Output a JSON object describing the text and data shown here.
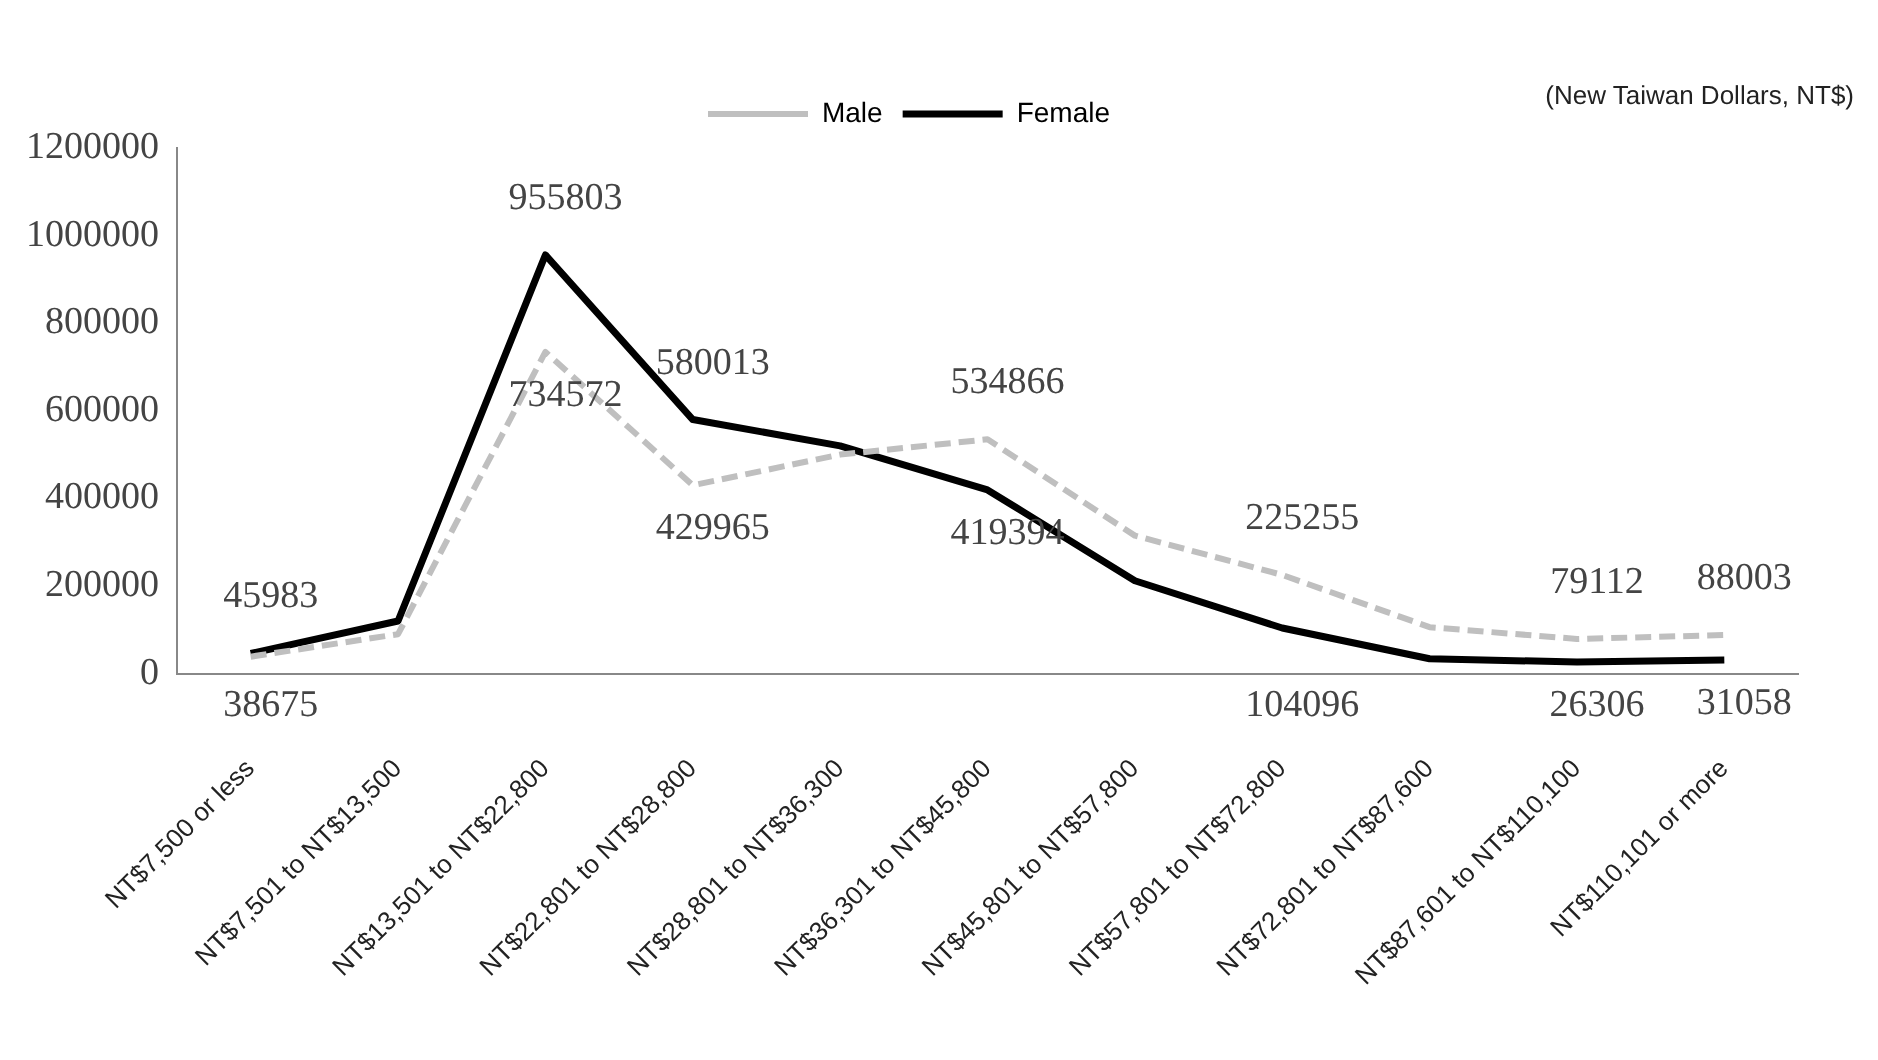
{
  "chart_data": {
    "type": "line",
    "annotations": [
      "(New Taiwan Dollars, NT$)"
    ],
    "categories": [
      "NT$7,500 or less",
      "NT$7,501 to NT$13,500",
      "NT$13,501 to NT$22,800",
      "NT$22,801 to NT$28,800",
      "NT$28,801 to NT$36,300",
      "NT$36,301 to NT$45,800",
      "NT$45,801 to NT$57,800",
      "NT$57,801 to NT$72,800",
      "NT$72,801 to NT$87,600",
      "NT$87,601 to NT$110,100",
      "NT$110,101 or more"
    ],
    "series": [
      {
        "name": "Male",
        "color": "#bfbfbf",
        "line_style": "dashed",
        "values": [
          38675,
          90000,
          734572,
          429965,
          500000,
          534866,
          315000,
          225255,
          106000,
          79112,
          88003
        ],
        "value_labels": [
          "38675",
          null,
          "734572",
          "429965",
          null,
          "534866",
          null,
          "225255",
          null,
          "79112",
          "88003"
        ]
      },
      {
        "name": "Female",
        "color": "#000000",
        "line_style": "solid",
        "values": [
          45983,
          120000,
          955803,
          580013,
          520000,
          419394,
          212000,
          104096,
          34000,
          26306,
          31058
        ],
        "value_labels": [
          "45983",
          null,
          "955803",
          "580013",
          null,
          "419394",
          null,
          "104096",
          null,
          "26306",
          "31058"
        ]
      }
    ],
    "ylim": [
      0,
      1200000
    ],
    "yticks": [
      0,
      200000,
      400000,
      600000,
      800000,
      1000000,
      1200000
    ],
    "grid": false,
    "legend": "top",
    "marker": "none"
  }
}
